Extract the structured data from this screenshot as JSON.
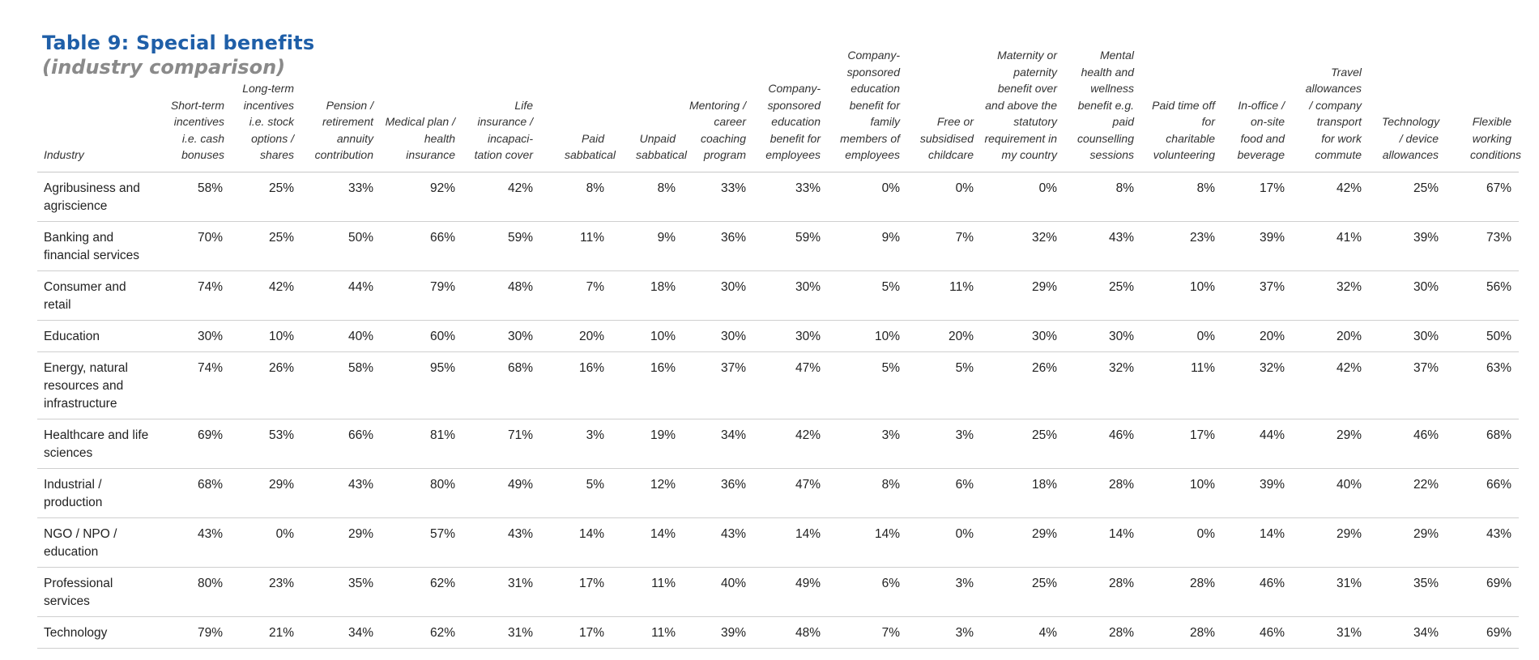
{
  "title": "Table 9: Special benefits",
  "subtitle": "(industry comparison)",
  "columns": [
    "Industry",
    "Short-term incentives i.e. cash bonuses",
    "Long-term incentives i.e. stock options / shares",
    "Pension / retirement annuity contribution",
    "Medical plan / health insurance",
    "Life insurance / incapaci-tation cover",
    "Paid sabbatical",
    "Unpaid sabbatical",
    "Mentoring / career coaching program",
    "Company-sponsored education benefit for employees",
    "Company-sponsored education benefit for family members of employees",
    "Free or subsidised childcare",
    "Maternity or paternity benefit over and above the statutory requirement in my country",
    "Mental health and wellness benefit e.g. paid counselling sessions",
    "Paid time off for charitable volunteering",
    "In-office / on-site food and beverage",
    "Travel allowances / company transport for work commute",
    "Technology / device allowances",
    "Flexible working conditions"
  ],
  "rows": [
    {
      "industry": "Agribusiness and agriscience",
      "values": [
        "58%",
        "25%",
        "33%",
        "92%",
        "42%",
        "8%",
        "8%",
        "33%",
        "33%",
        "0%",
        "0%",
        "0%",
        "8%",
        "8%",
        "17%",
        "42%",
        "25%",
        "67%"
      ]
    },
    {
      "industry": "Banking and financial services",
      "values": [
        "70%",
        "25%",
        "50%",
        "66%",
        "59%",
        "11%",
        "9%",
        "36%",
        "59%",
        "9%",
        "7%",
        "32%",
        "43%",
        "23%",
        "39%",
        "41%",
        "39%",
        "73%"
      ]
    },
    {
      "industry": "Consumer and retail",
      "values": [
        "74%",
        "42%",
        "44%",
        "79%",
        "48%",
        "7%",
        "18%",
        "30%",
        "30%",
        "5%",
        "11%",
        "29%",
        "25%",
        "10%",
        "37%",
        "32%",
        "30%",
        "56%"
      ]
    },
    {
      "industry": "Education",
      "values": [
        "30%",
        "10%",
        "40%",
        "60%",
        "30%",
        "20%",
        "10%",
        "30%",
        "30%",
        "10%",
        "20%",
        "30%",
        "30%",
        "0%",
        "20%",
        "20%",
        "30%",
        "50%"
      ]
    },
    {
      "industry": "Energy, natural resources and infrastructure",
      "values": [
        "74%",
        "26%",
        "58%",
        "95%",
        "68%",
        "16%",
        "16%",
        "37%",
        "47%",
        "5%",
        "5%",
        "26%",
        "32%",
        "11%",
        "32%",
        "42%",
        "37%",
        "63%"
      ]
    },
    {
      "industry": "Healthcare and life sciences",
      "values": [
        "69%",
        "53%",
        "66%",
        "81%",
        "71%",
        "3%",
        "19%",
        "34%",
        "42%",
        "3%",
        "3%",
        "25%",
        "46%",
        "17%",
        "44%",
        "29%",
        "46%",
        "68%"
      ]
    },
    {
      "industry": "Industrial / production",
      "values": [
        "68%",
        "29%",
        "43%",
        "80%",
        "49%",
        "5%",
        "12%",
        "36%",
        "47%",
        "8%",
        "6%",
        "18%",
        "28%",
        "10%",
        "39%",
        "40%",
        "22%",
        "66%"
      ]
    },
    {
      "industry": "NGO / NPO / education",
      "values": [
        "43%",
        "0%",
        "29%",
        "57%",
        "43%",
        "14%",
        "14%",
        "43%",
        "14%",
        "14%",
        "0%",
        "29%",
        "14%",
        "0%",
        "14%",
        "29%",
        "29%",
        "43%"
      ]
    },
    {
      "industry": "Professional services",
      "values": [
        "80%",
        "23%",
        "35%",
        "62%",
        "31%",
        "17%",
        "11%",
        "40%",
        "49%",
        "6%",
        "3%",
        "25%",
        "28%",
        "28%",
        "46%",
        "31%",
        "35%",
        "69%"
      ]
    },
    {
      "industry": "Technology",
      "values": [
        "79%",
        "21%",
        "34%",
        "62%",
        "31%",
        "17%",
        "11%",
        "39%",
        "48%",
        "7%",
        "3%",
        "4%",
        "28%",
        "28%",
        "46%",
        "31%",
        "34%",
        "69%"
      ]
    }
  ]
}
